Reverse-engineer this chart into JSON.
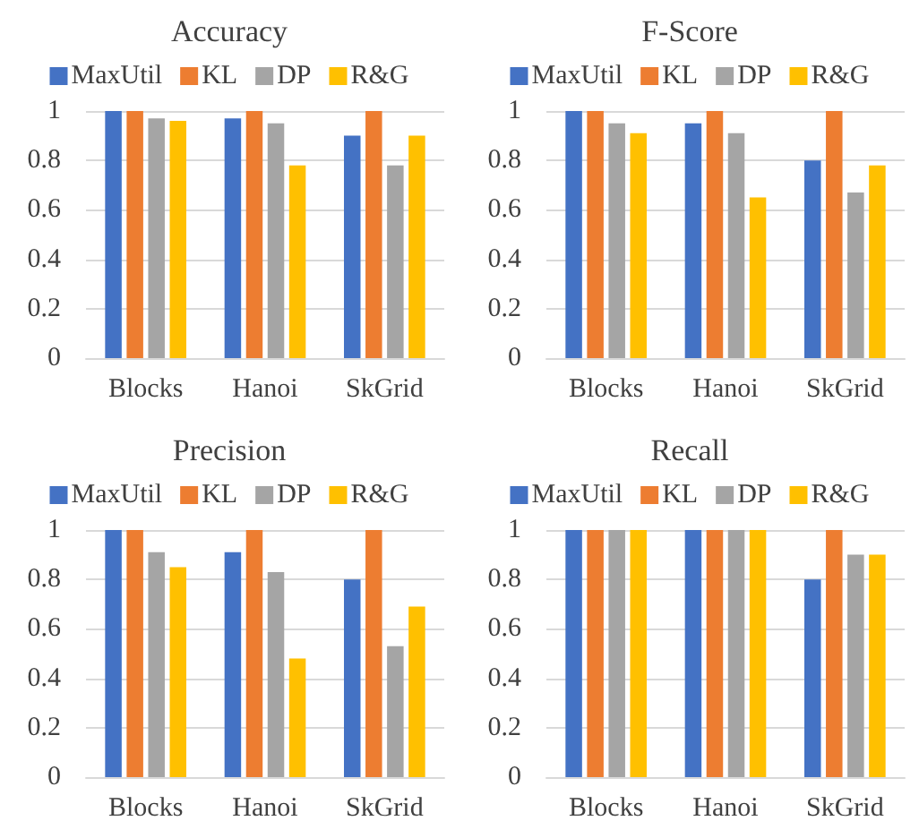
{
  "chart_data": [
    {
      "type": "bar",
      "title": "Accuracy",
      "categories": [
        "Blocks",
        "Hanoi",
        "SkGrid"
      ],
      "series": [
        {
          "name": "MaxUtil",
          "color": "#4472c4",
          "values": [
            1,
            0.97,
            0.9
          ]
        },
        {
          "name": "KL",
          "color": "#ed7d31",
          "values": [
            1,
            1,
            1
          ]
        },
        {
          "name": "DP",
          "color": "#a5a5a5",
          "values": [
            0.97,
            0.95,
            0.78
          ]
        },
        {
          "name": "R&G",
          "color": "#ffc000",
          "values": [
            0.96,
            0.78,
            0.9
          ]
        }
      ],
      "ylim": [
        0,
        1
      ],
      "yticks": [
        0,
        0.2,
        0.4,
        0.6,
        0.8,
        1
      ],
      "grid": "y",
      "legend": "top"
    },
    {
      "type": "bar",
      "title": "F-Score",
      "categories": [
        "Blocks",
        "Hanoi",
        "SkGrid"
      ],
      "series": [
        {
          "name": "MaxUtil",
          "color": "#4472c4",
          "values": [
            1,
            0.95,
            0.8
          ]
        },
        {
          "name": "KL",
          "color": "#ed7d31",
          "values": [
            1,
            1,
            1
          ]
        },
        {
          "name": "DP",
          "color": "#a5a5a5",
          "values": [
            0.95,
            0.91,
            0.67
          ]
        },
        {
          "name": "R&G",
          "color": "#ffc000",
          "values": [
            0.91,
            0.65,
            0.78
          ]
        }
      ],
      "ylim": [
        0,
        1
      ],
      "yticks": [
        0,
        0.2,
        0.4,
        0.6,
        0.8,
        1
      ],
      "grid": "y",
      "legend": "top"
    },
    {
      "type": "bar",
      "title": "Precision",
      "categories": [
        "Blocks",
        "Hanoi",
        "SkGrid"
      ],
      "series": [
        {
          "name": "MaxUtil",
          "color": "#4472c4",
          "values": [
            1,
            0.91,
            0.8
          ]
        },
        {
          "name": "KL",
          "color": "#ed7d31",
          "values": [
            1,
            1,
            1
          ]
        },
        {
          "name": "DP",
          "color": "#a5a5a5",
          "values": [
            0.91,
            0.83,
            0.53
          ]
        },
        {
          "name": "R&G",
          "color": "#ffc000",
          "values": [
            0.85,
            0.48,
            0.69
          ]
        }
      ],
      "ylim": [
        0,
        1
      ],
      "yticks": [
        0,
        0.2,
        0.4,
        0.6,
        0.8,
        1
      ],
      "grid": "y",
      "legend": "top"
    },
    {
      "type": "bar",
      "title": "Recall",
      "categories": [
        "Blocks",
        "Hanoi",
        "SkGrid"
      ],
      "series": [
        {
          "name": "MaxUtil",
          "color": "#4472c4",
          "values": [
            1,
            1,
            0.8
          ]
        },
        {
          "name": "KL",
          "color": "#ed7d31",
          "values": [
            1,
            1,
            1
          ]
        },
        {
          "name": "DP",
          "color": "#a5a5a5",
          "values": [
            1,
            1,
            0.9
          ]
        },
        {
          "name": "R&G",
          "color": "#ffc000",
          "values": [
            1,
            1,
            0.9
          ]
        }
      ],
      "ylim": [
        0,
        1
      ],
      "yticks": [
        0,
        0.2,
        0.4,
        0.6,
        0.8,
        1
      ],
      "grid": "y",
      "legend": "top"
    }
  ]
}
